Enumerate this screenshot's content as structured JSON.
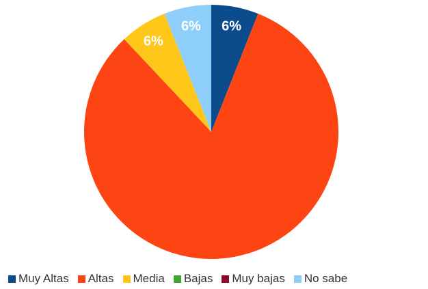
{
  "chart_data": {
    "type": "pie",
    "categories": [
      "Muy Altas",
      "Altas",
      "Media",
      "Bajas",
      "Muy bajas",
      "No sabe"
    ],
    "values": [
      6,
      82,
      6,
      0,
      0,
      6
    ],
    "data_labels": [
      "6%",
      "",
      "6%",
      "",
      "",
      "6%"
    ],
    "colors": [
      "#0b4a8b",
      "#fc4512",
      "#ffc71a",
      "#3fa62e",
      "#8b0a2c",
      "#8ecffa"
    ],
    "legend_position": "bottom"
  }
}
